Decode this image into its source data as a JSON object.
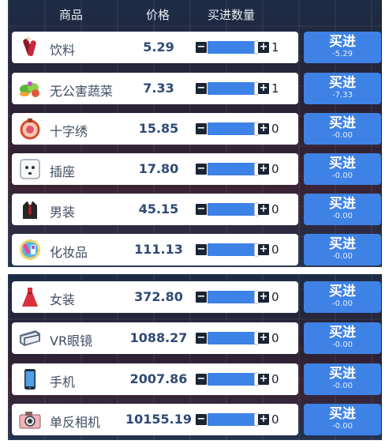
{
  "header": {
    "name": "商品",
    "price": "价格",
    "qty": "买进数量"
  },
  "buy_label": "买进",
  "colors": {
    "accent": "#3f82e5",
    "slider": "#3d82e6",
    "price_text": "#2f4a75"
  },
  "goods": [
    {
      "icon": "drink-icon",
      "name": "饮料",
      "price": "5.29",
      "qty": "1",
      "qty_level": 1.0,
      "cost": "-5.29"
    },
    {
      "icon": "vegetable-icon",
      "name": "无公害蔬菜",
      "price": "7.33",
      "qty": "1",
      "qty_level": 1.0,
      "cost": "-7.33"
    },
    {
      "icon": "cross-stitch-icon",
      "name": "十字绣",
      "price": "15.85",
      "qty": "0",
      "qty_level": 1.0,
      "cost": "-0.00"
    },
    {
      "icon": "socket-icon",
      "name": "插座",
      "price": "17.80",
      "qty": "0",
      "qty_level": 1.0,
      "cost": "-0.00"
    },
    {
      "icon": "suit-icon",
      "name": "男装",
      "price": "45.15",
      "qty": "0",
      "qty_level": 1.0,
      "cost": "-0.00"
    },
    {
      "icon": "cosmetics-icon",
      "name": "化妆品",
      "price": "111.13",
      "qty": "0",
      "qty_level": 1.0,
      "cost": "-0.00"
    },
    {
      "icon": "dress-icon",
      "name": "女装",
      "price": "372.80",
      "qty": "0",
      "qty_level": 1.0,
      "cost": "-0.00"
    },
    {
      "icon": "vr-glasses-icon",
      "name": "VR眼镜",
      "price": "1088.27",
      "qty": "0",
      "qty_level": 1.0,
      "cost": "-0.00"
    },
    {
      "icon": "phone-icon",
      "name": "手机",
      "price": "2007.86",
      "qty": "0",
      "qty_level": 1.0,
      "cost": "-0.00"
    },
    {
      "icon": "camera-icon",
      "name": "单反相机",
      "price": "10155.19",
      "qty": "0",
      "qty_level": 1.0,
      "cost": "-0.00"
    }
  ]
}
